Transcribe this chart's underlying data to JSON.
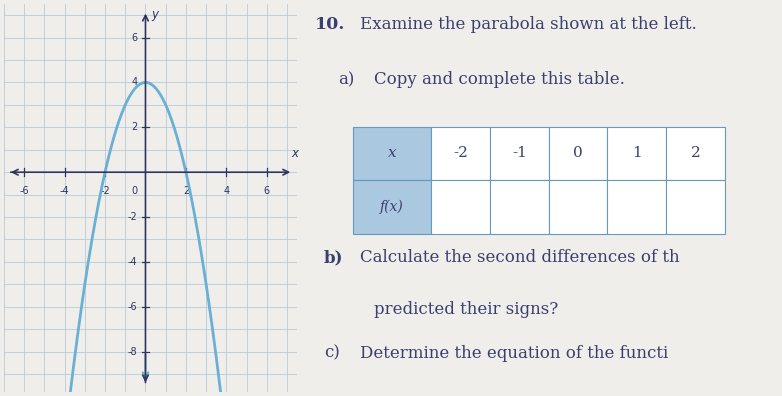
{
  "graph": {
    "xlim": [
      -7,
      7.5
    ],
    "ylim": [
      -9.8,
      7.5
    ],
    "xticks": [
      -6,
      -4,
      -2,
      2,
      4,
      6
    ],
    "yticks": [
      -8,
      -6,
      -4,
      -2,
      2,
      4,
      6
    ],
    "parabola_color": "#6ab0d4",
    "parabola_lw": 2.0,
    "parabola_a": -1,
    "parabola_b": 0,
    "parabola_c": 4,
    "background_color": "#cdd9e5",
    "grid_color": "#b0c4d4",
    "axis_color": "#2d3560",
    "tick_label_color": "#2d3560"
  },
  "right_bg": "#f0eeea",
  "text": {
    "question_num": "10.",
    "line1": "Examine the parabola shown at the left.",
    "line_a_prefix": "a)",
    "line_a_text": "Copy and complete this table.",
    "line_b_prefix": "b)",
    "line_b_text": "Calculate the second differences of th",
    "line_b2": "predicted their signs?",
    "line_c_prefix": "c)",
    "line_c_text": "Determine the equation of the functi",
    "font_size_main": 12,
    "text_color": "#3a3f6e"
  },
  "table": {
    "x_vals": [
      "-2",
      "-1",
      "0",
      "1",
      "2"
    ],
    "header_bg": "#aac8e0",
    "cell_bg": "#ffffff",
    "border_color": "#6699bb",
    "font_size": 11
  }
}
